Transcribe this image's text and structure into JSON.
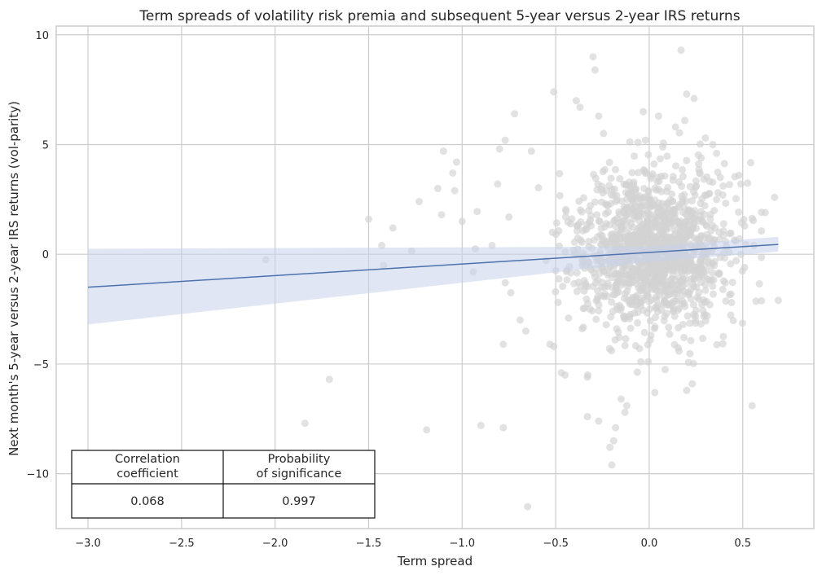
{
  "chart_data": {
    "type": "scatter",
    "title": "Term spreads of volatility risk premia and subsequent 5-year versus 2-year IRS returns",
    "xlabel": "Term spread",
    "ylabel": "Next month's 5-year versus 2-year IRS returns (vol-parity)",
    "xlim": [
      -3.17,
      0.88
    ],
    "ylim": [
      -12.5,
      10.4
    ],
    "xticks": [
      -3.0,
      -2.5,
      -2.0,
      -1.5,
      -1.0,
      -0.5,
      0.0,
      0.5
    ],
    "xtick_labels": [
      "−3.0",
      "−2.5",
      "−2.0",
      "−1.5",
      "−1.0",
      "−0.5",
      "0.0",
      "0.5"
    ],
    "yticks": [
      -10,
      -5,
      0,
      5,
      10
    ],
    "ytick_labels": [
      "−10",
      "−5",
      "0",
      "5",
      "10"
    ],
    "grid": true,
    "point_color": "#d3d3d3",
    "line_color": "#4c72b0",
    "band_color": "#c7d2ea",
    "regression": {
      "x_start": -3.0,
      "y_start": -1.5,
      "x_end": 0.69,
      "y_end": 0.45,
      "ci_start": [
        -3.2,
        0.25
      ],
      "ci_center": [
        -0.35,
        0.35
      ],
      "ci_end": [
        0.12,
        0.8
      ]
    },
    "outliers": [
      [
        0.55,
        -6.9
      ],
      [
        0.69,
        -2.1
      ],
      [
        0.67,
        2.6
      ],
      [
        0.62,
        1.9
      ],
      [
        0.56,
        0.4
      ],
      [
        0.17,
        9.3
      ],
      [
        -0.3,
        9.0
      ],
      [
        -0.29,
        8.4
      ],
      [
        0.2,
        7.3
      ],
      [
        0.24,
        7.1
      ],
      [
        -0.51,
        7.4
      ],
      [
        -0.39,
        7.0
      ],
      [
        -0.37,
        6.7
      ],
      [
        -0.72,
        6.4
      ],
      [
        -0.27,
        6.3
      ],
      [
        0.05,
        6.3
      ],
      [
        -0.02,
        5.2
      ],
      [
        -0.77,
        5.2
      ],
      [
        -0.8,
        4.8
      ],
      [
        -1.1,
        4.7
      ],
      [
        -0.63,
        4.7
      ],
      [
        -1.03,
        4.2
      ],
      [
        -1.05,
        3.7
      ],
      [
        -1.13,
        3.0
      ],
      [
        -1.04,
        2.9
      ],
      [
        -0.81,
        3.2
      ],
      [
        -1.23,
        2.4
      ],
      [
        -1.11,
        1.8
      ],
      [
        -1.0,
        1.5
      ],
      [
        -1.37,
        1.2
      ],
      [
        -1.5,
        1.6
      ],
      [
        -1.43,
        0.4
      ],
      [
        -1.27,
        0.15
      ],
      [
        -1.42,
        -0.5
      ],
      [
        -2.05,
        -0.25
      ],
      [
        -0.92,
        1.95
      ],
      [
        -0.75,
        1.7
      ],
      [
        -0.93,
        0.25
      ],
      [
        -0.84,
        0.4
      ],
      [
        -0.94,
        -0.8
      ],
      [
        -0.77,
        -1.3
      ],
      [
        -0.74,
        -1.75
      ],
      [
        -0.78,
        -4.1
      ],
      [
        -0.69,
        -3.0
      ],
      [
        -0.66,
        -3.5
      ],
      [
        -1.71,
        -5.7
      ],
      [
        -1.84,
        -7.7
      ],
      [
        -1.19,
        -8.0
      ],
      [
        -0.9,
        -7.8
      ],
      [
        -0.78,
        -7.9
      ],
      [
        -0.65,
        -11.5
      ],
      [
        -0.2,
        -9.6
      ],
      [
        -0.21,
        -8.8
      ],
      [
        -0.19,
        -8.5
      ],
      [
        -0.18,
        -7.9
      ],
      [
        -0.27,
        -7.6
      ],
      [
        -0.33,
        -7.4
      ],
      [
        -0.13,
        -7.2
      ],
      [
        -0.12,
        -6.9
      ],
      [
        -0.15,
        -6.6
      ],
      [
        0.03,
        -6.3
      ],
      [
        0.2,
        -6.2
      ],
      [
        0.23,
        -5.9
      ],
      [
        -0.47,
        -5.4
      ],
      [
        -0.45,
        -5.5
      ],
      [
        -0.33,
        -5.6
      ],
      [
        -0.51,
        -4.2
      ],
      [
        -0.53,
        -4.1
      ],
      [
        0.44,
        -2.2
      ],
      [
        0.31,
        -2.8
      ],
      [
        0.36,
        4.6
      ],
      [
        0.38,
        3.5
      ],
      [
        0.48,
        3.6
      ],
      [
        0.49,
        3.2
      ],
      [
        0.34,
        5.0
      ],
      [
        0.3,
        5.3
      ],
      [
        -0.06,
        5.1
      ],
      [
        0.14,
        5.8
      ],
      [
        0.19,
        6.1
      ],
      [
        0.51,
        -0.6
      ]
    ],
    "cluster": {
      "seed": 17,
      "count": 1350,
      "x_mean": 0.02,
      "x_sd": 0.2,
      "y_mean": 0.2,
      "y_sd": 1.75
    },
    "stats_table": {
      "headers": [
        "Correlation\ncoefficient",
        "Probability\nof significance"
      ],
      "values": [
        "0.068",
        "0.997"
      ]
    }
  }
}
